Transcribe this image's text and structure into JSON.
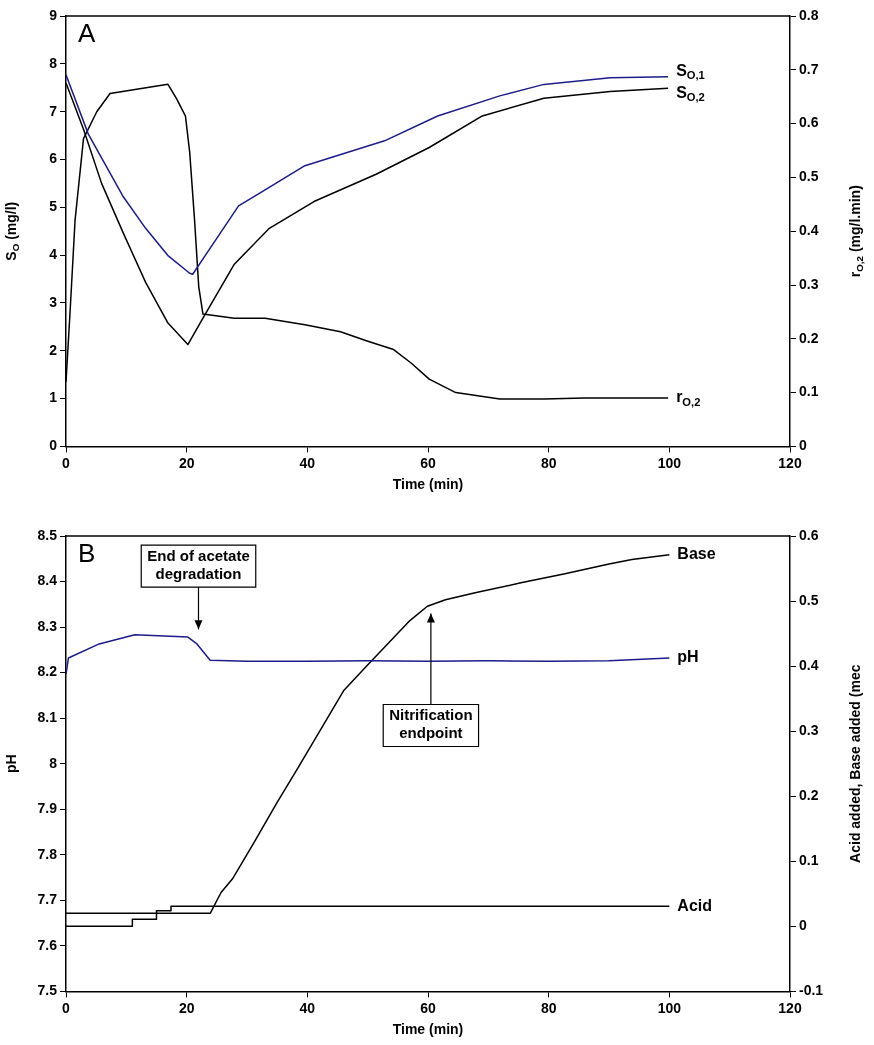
{
  "chart_data": [
    {
      "type": "line",
      "xlabel": "Time (min)",
      "ylabel": "S$_{O}$ (mg/l)",
      "y2label": "r$_{O,2}$ (mg/l.min)",
      "annotations": [
        "A"
      ],
      "xlim": [
        0,
        120
      ],
      "xticks": [
        0,
        20,
        40,
        60,
        80,
        100,
        120
      ],
      "ylim": [
        0,
        9
      ],
      "yticks": [
        0,
        1,
        2,
        3,
        4,
        5,
        6,
        7,
        8,
        9
      ],
      "y2lim": [
        0,
        0.8
      ],
      "y2ticks": [
        0,
        0.1,
        0.2,
        0.3,
        0.4,
        0.5,
        0.6,
        0.7,
        0.8
      ],
      "grid": false,
      "legend": false,
      "marker": "none",
      "line_style": "solid",
      "series": [
        {
          "name": "S$_{O,1}$",
          "color": "#1c1c8c",
          "x": [
            0,
            3.7,
            9.5,
            13.2,
            16.9,
            20.5,
            21,
            28.6,
            39.6,
            52.8,
            61.6,
            71.9,
            79.2,
            90.2,
            99.8
          ],
          "values": [
            7.77,
            6.53,
            5.22,
            4.56,
            3.99,
            3.62,
            3.6,
            5.03,
            5.87,
            6.39,
            6.91,
            7.33,
            7.57,
            7.71,
            7.73
          ]
        },
        {
          "name": "S$_{O,2}$",
          "color": "#000000",
          "x": [
            0,
            2.9,
            5.9,
            9.5,
            13.2,
            16.9,
            20.2,
            22.7,
            27.9,
            33.7,
            41.1,
            51.4,
            60.2,
            69,
            79.2,
            90.2,
            99.8
          ],
          "values": [
            7.6,
            6.63,
            5.5,
            4.46,
            3.43,
            2.58,
            2.13,
            2.68,
            3.81,
            4.56,
            5.12,
            5.69,
            6.25,
            6.91,
            7.28,
            7.42,
            7.49
          ]
        },
        {
          "name": "r$_{O,2}$",
          "color": "#000000",
          "axis": "y2",
          "x": [
            0,
            0.7,
            1.5,
            2.9,
            5.1,
            7.3,
            11.7,
            16.9,
            18.3,
            19.8,
            20.5,
            21.3,
            22,
            22.7,
            27.9,
            33,
            39.6,
            45.5,
            49.9,
            54.3,
            57.2,
            60.2,
            64.6,
            71.9,
            79.2,
            86,
            99.8
          ],
          "values": [
            0.12,
            0.255,
            0.42,
            0.572,
            0.622,
            0.656,
            0.664,
            0.673,
            0.647,
            0.614,
            0.547,
            0.422,
            0.297,
            0.246,
            0.238,
            0.238,
            0.226,
            0.213,
            0.196,
            0.18,
            0.155,
            0.125,
            0.1,
            0.088,
            0.088,
            0.09,
            0.09
          ]
        }
      ]
    },
    {
      "type": "line",
      "xlabel": "Time (min)",
      "ylabel": "pH",
      "y2label": "Acid added, Base added (mec",
      "annotations": [
        "B",
        "End of acetate degradation",
        "Nitrification endpoint"
      ],
      "xlim": [
        0,
        120
      ],
      "xticks": [
        0,
        20,
        40,
        60,
        80,
        100,
        120
      ],
      "ylim": [
        7.5,
        8.5
      ],
      "yticks": [
        7.5,
        7.6,
        7.7,
        7.8,
        7.9,
        8,
        8.1,
        8.2,
        8.3,
        8.4,
        8.5
      ],
      "y2lim": [
        -0.1,
        0.6
      ],
      "y2ticks": [
        -0.1,
        0,
        0.1,
        0.2,
        0.3,
        0.4,
        0.5,
        0.6
      ],
      "grid": false,
      "legend": false,
      "marker": "none",
      "line_style": "solid",
      "series": [
        {
          "name": "pH",
          "color": "#1c1c8c",
          "x": [
            0,
            0.4,
            5.5,
            11.4,
            20.2,
            21.7,
            23.9,
            30,
            40,
            50,
            60,
            70,
            80,
            90,
            100
          ],
          "values": [
            8.196,
            8.232,
            8.263,
            8.283,
            8.278,
            8.263,
            8.227,
            8.225,
            8.225,
            8.226,
            8.225,
            8.226,
            8.225,
            8.226,
            8.232
          ]
        },
        {
          "name": "Base",
          "color": "#000000",
          "axis": "y2",
          "x": [
            0,
            23.9,
            25.7,
            27.6,
            31.3,
            34.9,
            38.6,
            42.3,
            46,
            49.6,
            53.3,
            57,
            59.9,
            62.9,
            68,
            75.4,
            82.7,
            90,
            93.8,
            100
          ],
          "values": [
            0.02,
            0.02,
            0.052,
            0.073,
            0.131,
            0.189,
            0.246,
            0.304,
            0.362,
            0.398,
            0.434,
            0.47,
            0.492,
            0.502,
            0.513,
            0.528,
            0.542,
            0.557,
            0.564,
            0.571
          ]
        },
        {
          "name": "Acid",
          "type": "step",
          "color": "#000000",
          "axis": "y2",
          "x": [
            0,
            11,
            15,
            17.4,
            100
          ],
          "values": [
            0,
            0.011,
            0.024,
            0.031,
            0.031
          ]
        }
      ]
    }
  ]
}
